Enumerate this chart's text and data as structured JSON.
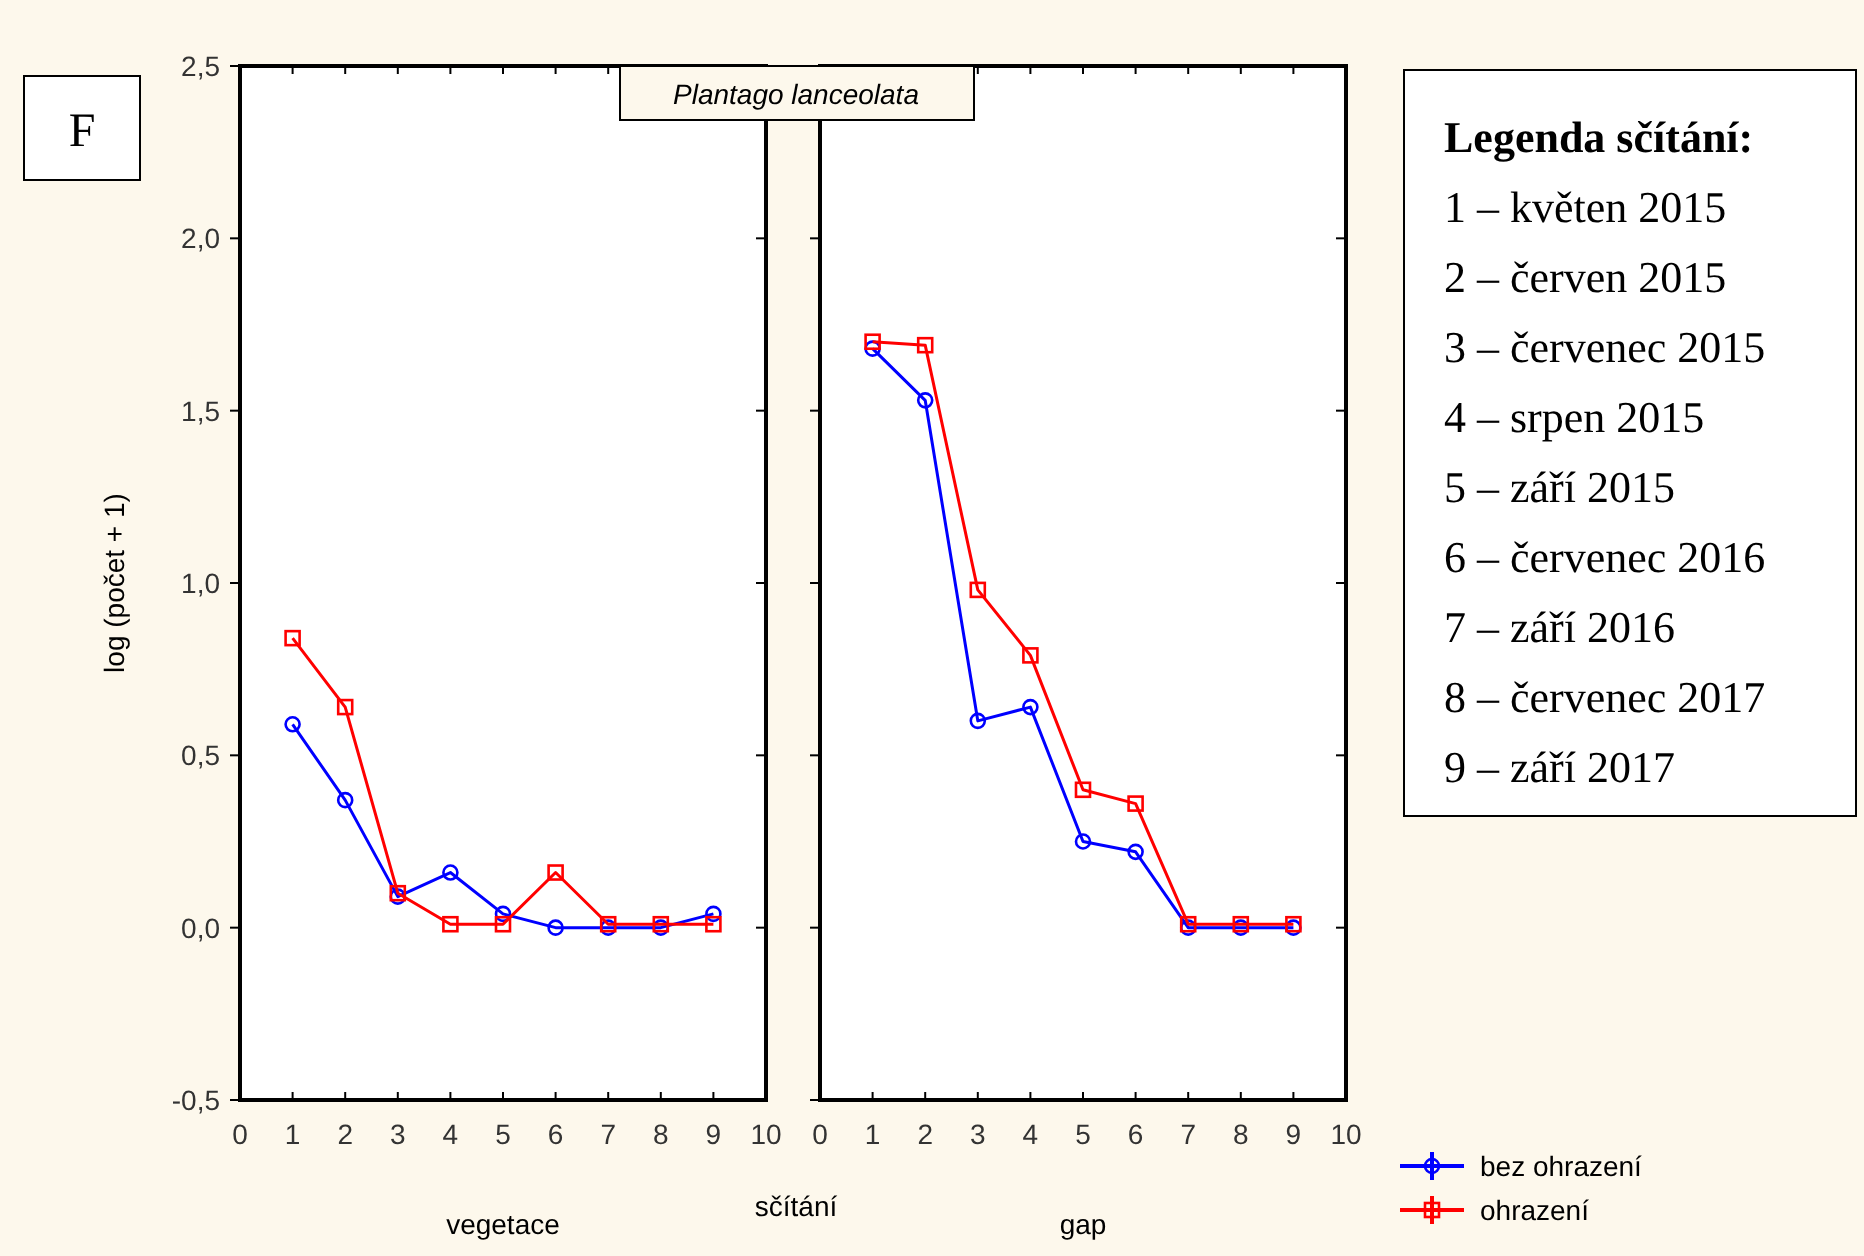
{
  "chart_data": [
    {
      "type": "line",
      "title": "Plantago lanceolata",
      "xlabel": "vegetace",
      "ylabel": "log (počet + 1)",
      "annotations": [
        "F",
        "Legenda sčítání:",
        "1 – květen 2015",
        "2 – červen 2015",
        "3 – červenec 2015",
        "4 – srpen 2015",
        "5 – září 2015",
        "6 – červenec 2016",
        "7 – září 2016",
        "8 – červenec 2017",
        "9 – září 2017",
        "sčítání"
      ],
      "x": [
        1,
        2,
        3,
        4,
        5,
        6,
        7,
        8,
        9
      ],
      "series": [
        {
          "color": "#0000ff",
          "marker": "circle",
          "values": [
            0.59,
            0.37,
            0.09,
            0.16,
            0.04,
            0.0,
            0.0,
            0.0,
            0.04
          ]
        },
        {
          "color": "#ff0000",
          "marker": "square",
          "values": [
            0.84,
            0.64,
            0.1,
            0.01,
            0.01,
            0.16,
            0.01,
            0.01,
            0.01
          ]
        }
      ],
      "xlim": [
        0,
        10
      ],
      "xticks": [
        0,
        1,
        2,
        3,
        4,
        5,
        6,
        7,
        8,
        9,
        10
      ],
      "ylim": [
        -0.5,
        2.5
      ],
      "yticks": [
        {
          "value": -0.5,
          "label": "-0,5"
        },
        {
          "value": 0,
          "label": "0,0"
        },
        {
          "value": 0.5,
          "label": "0,5"
        },
        {
          "value": 1,
          "label": "1,0"
        },
        {
          "value": 1.5,
          "label": "1,5"
        },
        {
          "value": 2,
          "label": "2,0"
        },
        {
          "value": 2.5,
          "label": "2,5"
        }
      ],
      "grid": false,
      "legend": false
    },
    {
      "type": "line",
      "xlabel": "gap",
      "x": [
        1,
        2,
        3,
        4,
        5,
        6,
        7,
        8,
        9
      ],
      "yticks": [
        {
          "value": -0.5,
          "label": null
        },
        {
          "value": 0,
          "label": null
        },
        {
          "value": 0.5,
          "label": null
        },
        {
          "value": 1,
          "label": null
        },
        {
          "value": 1.5,
          "label": null
        },
        {
          "value": 2,
          "label": null
        },
        {
          "value": 2.5,
          "label": null
        }
      ],
      "series": [
        {
          "name": "bez ohrazení",
          "color": "#0000ff",
          "marker": "circle",
          "values": [
            1.68,
            1.53,
            0.6,
            0.64,
            0.25,
            0.22,
            0.0,
            0.0,
            0.0
          ]
        },
        {
          "name": "ohrazení",
          "color": "#ff0000",
          "marker": "square",
          "values": [
            1.7,
            1.69,
            0.98,
            0.79,
            0.4,
            0.36,
            0.01,
            0.01,
            0.01
          ]
        }
      ],
      "xlim": [
        0,
        10
      ],
      "xticks": [
        0,
        1,
        2,
        3,
        4,
        5,
        6,
        7,
        8,
        9,
        10
      ],
      "ylim": [
        -0.5,
        2.5
      ],
      "tick_labels": "x",
      "grid": false,
      "legend": "bottom right"
    }
  ]
}
